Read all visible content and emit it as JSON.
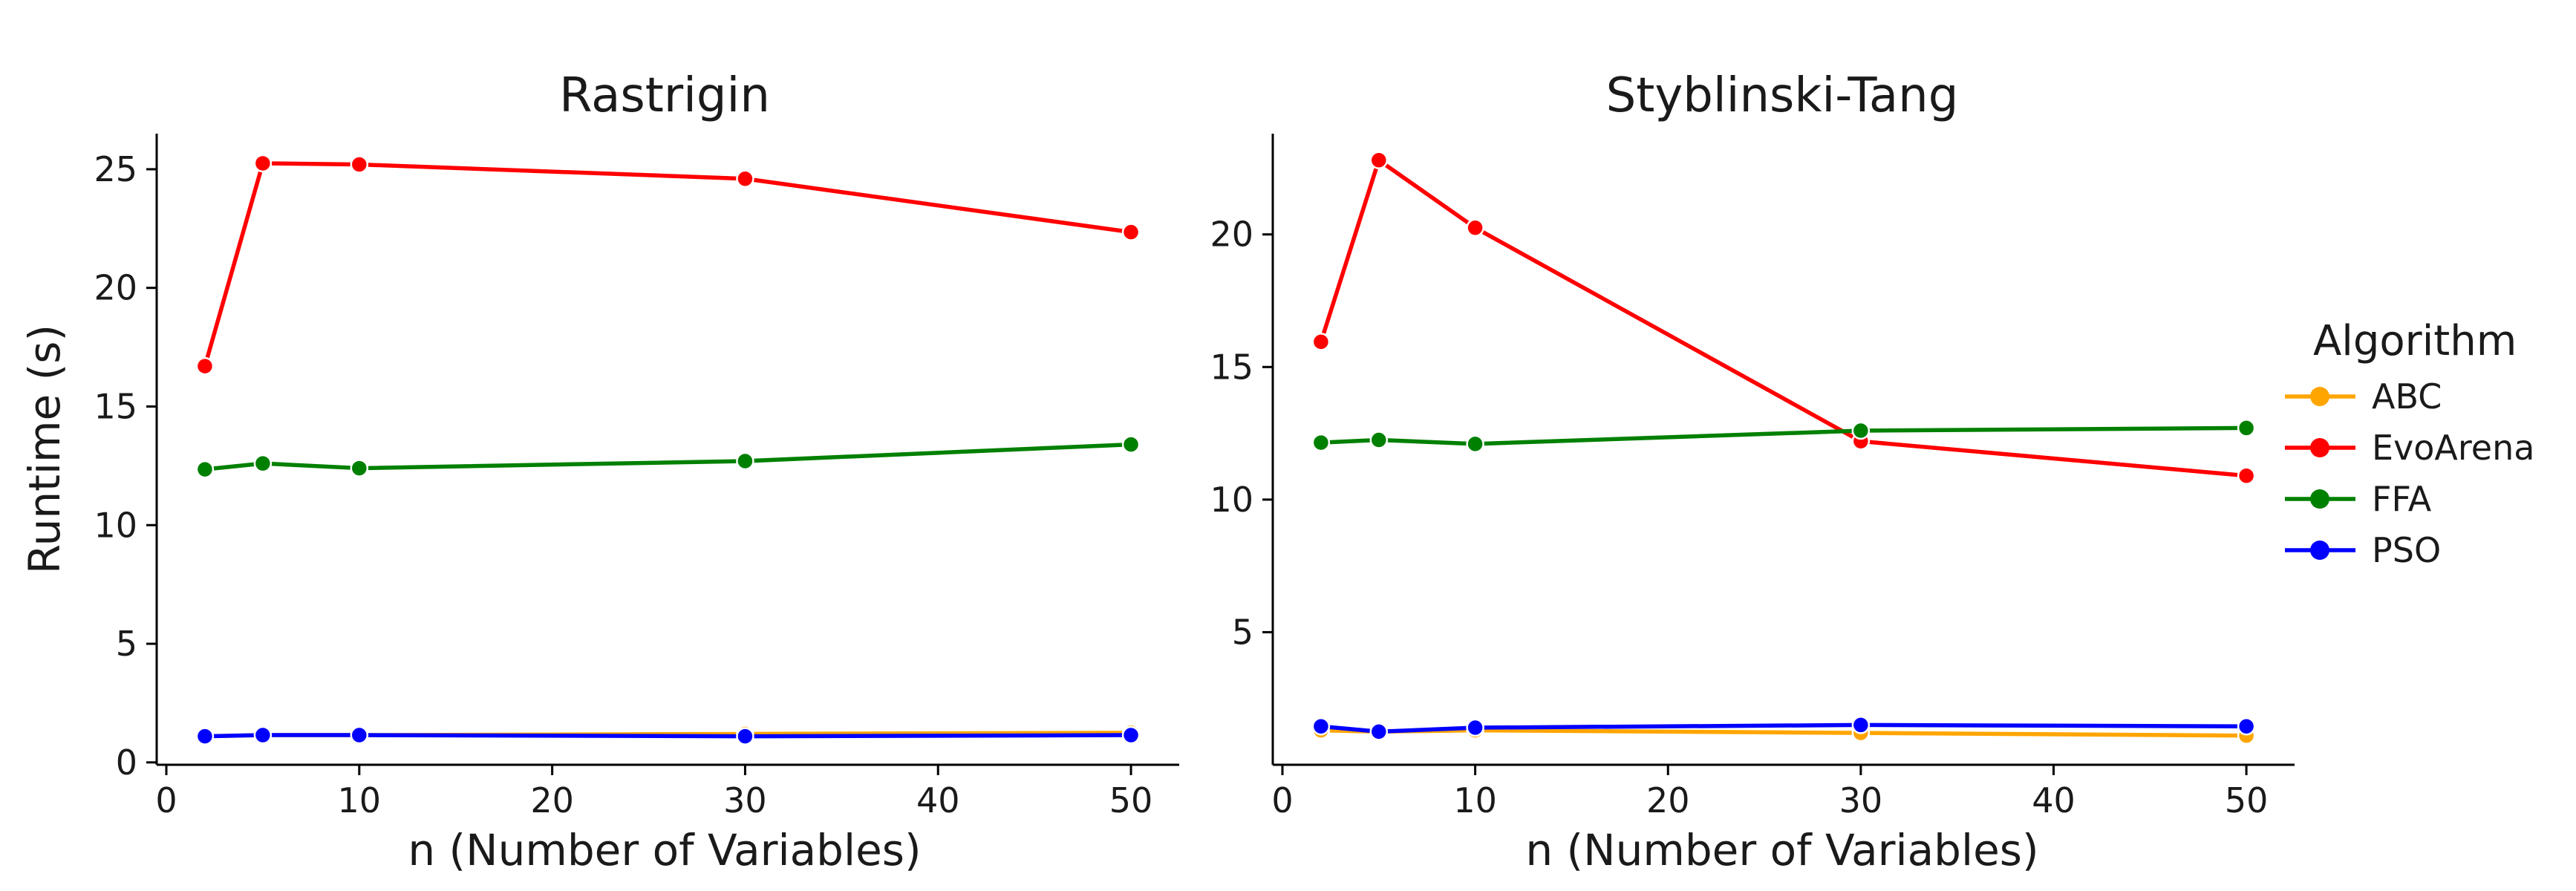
{
  "chart_data": [
    {
      "type": "line",
      "title": "Rastrigin",
      "xlabel": "n (Number of Variables)",
      "ylabel": "Runtime (s)",
      "x": [
        2,
        5,
        10,
        30,
        50
      ],
      "xlim": [
        -0.5,
        52.5
      ],
      "ylim": [
        -0.1,
        26.5
      ],
      "xticks": [
        0,
        10,
        20,
        30,
        40,
        50
      ],
      "yticks": [
        0,
        5,
        10,
        15,
        20,
        25
      ],
      "grid": false,
      "series": [
        {
          "name": "ABC",
          "color": "#FFA500",
          "values": [
            1.1,
            1.15,
            1.15,
            1.2,
            1.25
          ]
        },
        {
          "name": "EvoArena",
          "color": "#FF0000",
          "values": [
            16.7,
            25.25,
            25.2,
            24.6,
            22.35
          ]
        },
        {
          "name": "FFA",
          "color": "#008000",
          "values": [
            12.35,
            12.6,
            12.4,
            12.7,
            13.4
          ]
        },
        {
          "name": "PSO",
          "color": "#0000FF",
          "values": [
            1.1,
            1.15,
            1.15,
            1.1,
            1.15
          ]
        }
      ]
    },
    {
      "type": "line",
      "title": "Styblinski-Tang",
      "xlabel": "n (Number of Variables)",
      "ylabel": "",
      "x": [
        2,
        5,
        10,
        30,
        50
      ],
      "xlim": [
        -0.5,
        52.5
      ],
      "ylim": [
        0.0,
        23.8
      ],
      "xticks": [
        0,
        10,
        20,
        30,
        40,
        50
      ],
      "yticks": [
        5,
        10,
        15,
        20
      ],
      "grid": false,
      "series": [
        {
          "name": "ABC",
          "color": "#FFA500",
          "values": [
            1.3,
            1.25,
            1.3,
            1.2,
            1.1
          ]
        },
        {
          "name": "EvoArena",
          "color": "#FF0000",
          "values": [
            15.95,
            22.8,
            20.25,
            12.2,
            10.9
          ]
        },
        {
          "name": "FFA",
          "color": "#008000",
          "values": [
            12.15,
            12.25,
            12.1,
            12.6,
            12.7
          ]
        },
        {
          "name": "PSO",
          "color": "#0000FF",
          "values": [
            1.45,
            1.25,
            1.4,
            1.5,
            1.45
          ]
        }
      ]
    }
  ],
  "legend": {
    "title": "Algorithm",
    "placement": "right",
    "items": [
      "ABC",
      "EvoArena",
      "FFA",
      "PSO"
    ]
  }
}
